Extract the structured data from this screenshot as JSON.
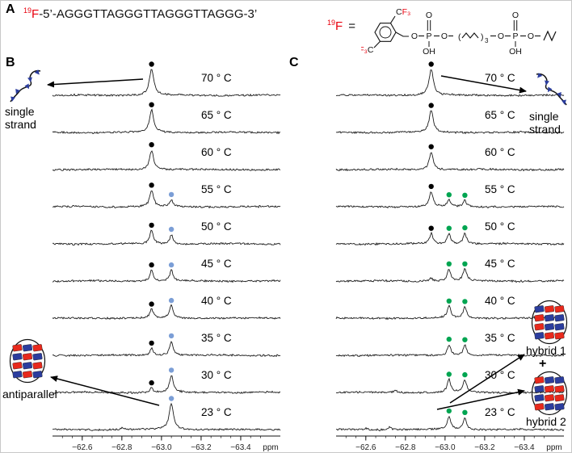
{
  "colors": {
    "red": "#e8000d",
    "trace": "#1c1c1c",
    "marker_black": "#000000",
    "marker_blue": "#7b9ed6",
    "marker_green": "#00a551",
    "block_red": "#e8291c",
    "block_blue": "#2b3d9e"
  },
  "panelA": {
    "label": "A",
    "isotope_sup": "19",
    "isotope_symbol": "F",
    "sequence_rest": "-5’-AGGGTTAGGGTTAGGGTTAGGG-3’",
    "tag_sup": "19",
    "tag_symbol": "F",
    "equals_sign": "=",
    "structure": {
      "c": "C",
      "f3": "F₃",
      "o": "O",
      "p": "P",
      "oh": "OH",
      "paren_open": "(",
      "paren_close": ")",
      "sub3": "3"
    }
  },
  "panelB": {
    "label": "B",
    "top_annotation": "single strand",
    "bottom_annotation": "antiparallel"
  },
  "panelC": {
    "label": "C",
    "top_annotation": "single strand",
    "bottom_annotation_1": "hybrid 1",
    "plus": "+",
    "bottom_annotation_2": "hybrid 2"
  },
  "axis": {
    "tick_labels": [
      "−62.6",
      "−62.8",
      "−63.0",
      "−63.2",
      "−63.4"
    ],
    "unit": "ppm"
  },
  "cartoons": {
    "antiparallel_grid": [
      [
        "r",
        "b",
        "r"
      ],
      [
        "b",
        "r",
        "b"
      ],
      [
        "r",
        "b",
        "r"
      ],
      [
        "b",
        "r",
        "b"
      ]
    ],
    "hybrid1_grid": [
      [
        "b",
        "r",
        "r"
      ],
      [
        "r",
        "b",
        "b"
      ],
      [
        "r",
        "b",
        "b"
      ],
      [
        "b",
        "r",
        "r"
      ]
    ],
    "hybrid2_grid": [
      [
        "r",
        "b",
        "b"
      ],
      [
        "b",
        "r",
        "r"
      ],
      [
        "b",
        "r",
        "r"
      ],
      [
        "r",
        "b",
        "b"
      ]
    ]
  },
  "chart_data": [
    {
      "panel": "B",
      "type": "line",
      "xlabel": "ppm",
      "x_ticks": [
        -62.6,
        -62.8,
        -63.0,
        -63.2,
        -63.4
      ],
      "x_range": [
        -62.45,
        -63.6
      ],
      "traces": [
        {
          "label": "70 ° C",
          "peaks": [
            {
              "ppm": -62.95,
              "intensity": 1.0,
              "marker": "black"
            }
          ]
        },
        {
          "label": "65 ° C",
          "peaks": [
            {
              "ppm": -62.95,
              "intensity": 0.87,
              "marker": "black"
            }
          ]
        },
        {
          "label": "60 ° C",
          "peaks": [
            {
              "ppm": -62.95,
              "intensity": 0.76,
              "marker": "black"
            }
          ]
        },
        {
          "label": "55 ° C",
          "peaks": [
            {
              "ppm": -62.95,
              "intensity": 0.63,
              "marker": "black"
            },
            {
              "ppm": -63.05,
              "intensity": 0.27,
              "marker": "blue"
            }
          ]
        },
        {
          "label": "50 ° C",
          "peaks": [
            {
              "ppm": -62.95,
              "intensity": 0.52,
              "marker": "black"
            },
            {
              "ppm": -63.05,
              "intensity": 0.36,
              "marker": "blue"
            }
          ]
        },
        {
          "label": "45 ° C",
          "peaks": [
            {
              "ppm": -62.95,
              "intensity": 0.42,
              "marker": "black"
            },
            {
              "ppm": -63.05,
              "intensity": 0.42,
              "marker": "blue"
            }
          ]
        },
        {
          "label": "40 ° C",
          "peaks": [
            {
              "ppm": -62.95,
              "intensity": 0.34,
              "marker": "black"
            },
            {
              "ppm": -63.05,
              "intensity": 0.48,
              "marker": "blue"
            }
          ]
        },
        {
          "label": "35 ° C",
          "peaks": [
            {
              "ppm": -62.95,
              "intensity": 0.27,
              "marker": "black"
            },
            {
              "ppm": -63.05,
              "intensity": 0.55,
              "marker": "blue"
            }
          ]
        },
        {
          "label": "30 ° C",
          "peaks": [
            {
              "ppm": -62.95,
              "intensity": 0.17,
              "marker": "black"
            },
            {
              "ppm": -63.05,
              "intensity": 0.66,
              "marker": "blue"
            }
          ]
        },
        {
          "label": "23 ° C",
          "peaks": [
            {
              "ppm": -63.05,
              "intensity": 1.0,
              "marker": "blue"
            },
            {
              "ppm": -62.8,
              "intensity": 0.07
            }
          ]
        }
      ]
    },
    {
      "panel": "C",
      "type": "line",
      "xlabel": "ppm",
      "x_ticks": [
        -62.6,
        -62.8,
        -63.0,
        -63.2,
        -63.4
      ],
      "x_range": [
        -62.45,
        -63.6
      ],
      "traces": [
        {
          "label": "70 ° C",
          "peaks": [
            {
              "ppm": -62.93,
              "intensity": 1.0,
              "marker": "black"
            }
          ]
        },
        {
          "label": "65 ° C",
          "peaks": [
            {
              "ppm": -62.93,
              "intensity": 0.84,
              "marker": "black"
            }
          ]
        },
        {
          "label": "60 ° C",
          "peaks": [
            {
              "ppm": -62.93,
              "intensity": 0.68,
              "marker": "black"
            }
          ]
        },
        {
          "label": "55 ° C",
          "peaks": [
            {
              "ppm": -62.93,
              "intensity": 0.58,
              "marker": "black"
            },
            {
              "ppm": -63.02,
              "intensity": 0.26,
              "marker": "green"
            },
            {
              "ppm": -63.1,
              "intensity": 0.24,
              "marker": "green"
            }
          ]
        },
        {
          "label": "50 ° C",
          "peaks": [
            {
              "ppm": -62.93,
              "intensity": 0.4,
              "marker": "black"
            },
            {
              "ppm": -63.02,
              "intensity": 0.4,
              "marker": "green"
            },
            {
              "ppm": -63.1,
              "intensity": 0.42,
              "marker": "green"
            }
          ]
        },
        {
          "label": "45 ° C",
          "peaks": [
            {
              "ppm": -63.02,
              "intensity": 0.46,
              "marker": "green"
            },
            {
              "ppm": -63.1,
              "intensity": 0.46,
              "marker": "green"
            },
            {
              "ppm": -62.93,
              "intensity": 0.12
            }
          ]
        },
        {
          "label": "40 ° C",
          "peaks": [
            {
              "ppm": -63.02,
              "intensity": 0.46,
              "marker": "green"
            },
            {
              "ppm": -63.1,
              "intensity": 0.44,
              "marker": "green"
            }
          ]
        },
        {
          "label": "35 ° C",
          "peaks": [
            {
              "ppm": -63.02,
              "intensity": 0.42,
              "marker": "green"
            },
            {
              "ppm": -63.1,
              "intensity": 0.4,
              "marker": "green"
            }
          ]
        },
        {
          "label": "30 ° C",
          "peaks": [
            {
              "ppm": -63.02,
              "intensity": 0.5,
              "marker": "green"
            },
            {
              "ppm": -63.1,
              "intensity": 0.48,
              "marker": "green"
            },
            {
              "ppm": -62.75,
              "intensity": 0.08
            }
          ]
        },
        {
          "label": "23 ° C",
          "peaks": [
            {
              "ppm": -63.02,
              "intensity": 0.52,
              "marker": "green"
            },
            {
              "ppm": -63.1,
              "intensity": 0.46,
              "marker": "green"
            },
            {
              "ppm": -62.72,
              "intensity": 0.1
            },
            {
              "ppm": -62.6,
              "intensity": 0.07
            }
          ]
        }
      ]
    }
  ]
}
